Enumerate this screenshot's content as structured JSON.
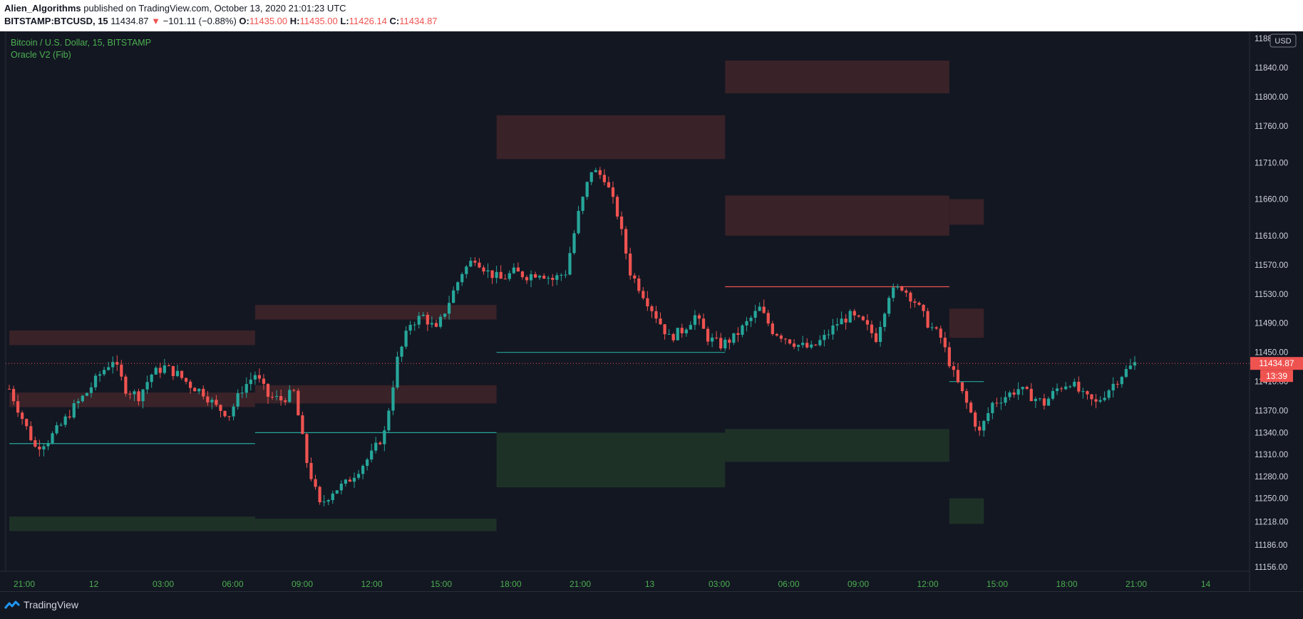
{
  "header": {
    "author": "Alien_Algorithms",
    "published": "published on TradingView.com, October 13, 2020 21:01:23 UTC",
    "symbol": "BITSTAMP:BTCUSD, 15",
    "last": "11434.87",
    "change": "−101.11 (−0.88%)",
    "o_label": "O:",
    "o_value": "11435.00",
    "h_label": "H:",
    "h_value": "11435.00",
    "l_label": "L:",
    "l_value": "11426.14",
    "c_label": "C:",
    "c_value": "11434.87"
  },
  "legend": {
    "series_title": "Bitcoin / U.S. Dollar, 15, BITSTAMP",
    "indicator": "Oracle V2 (Fib)"
  },
  "currency_badge": "USD",
  "last_price_tag": "11434.87",
  "countdown_tag": "13:39",
  "footer": {
    "brand": "TradingView"
  },
  "colors": {
    "background": "#131722",
    "up": "#26a69a",
    "down": "#ef5350",
    "resistance_zone": "#3b2329",
    "support_zone": "#1f3328",
    "axis_text": "#d1d4dc",
    "time_text": "#4caf50"
  },
  "chart_data": {
    "type": "candlestick",
    "title": "Bitcoin / U.S. Dollar, 15, BITSTAMP",
    "interval": "15",
    "exchange": "BITSTAMP",
    "x_ticks": [
      "21:00",
      "12",
      "03:00",
      "06:00",
      "09:00",
      "12:00",
      "15:00",
      "18:00",
      "21:00",
      "13",
      "03:00",
      "06:00",
      "09:00",
      "12:00",
      "15:00",
      "18:00",
      "21:00",
      "14"
    ],
    "y_ticks": [
      "11880.00",
      "11840.00",
      "11800.00",
      "11760.00",
      "11710.00",
      "11660.00",
      "11610.00",
      "11570.00",
      "11530.00",
      "11490.00",
      "11450.00",
      "11410.00",
      "11370.00",
      "11340.00",
      "11310.00",
      "11280.00",
      "11250.00",
      "11218.00",
      "11186.00",
      "11156.00"
    ],
    "ylim": [
      11150,
      11890
    ],
    "last_price": 11434.87,
    "candle_points": [
      [
        0,
        11400
      ],
      [
        3,
        11360
      ],
      [
        6,
        11320
      ],
      [
        9,
        11330
      ],
      [
        12,
        11350
      ],
      [
        15,
        11375
      ],
      [
        18,
        11395
      ],
      [
        21,
        11420
      ],
      [
        24,
        11440
      ],
      [
        27,
        11400
      ],
      [
        30,
        11390
      ],
      [
        33,
        11420
      ],
      [
        36,
        11430
      ],
      [
        39,
        11420
      ],
      [
        42,
        11405
      ],
      [
        45,
        11395
      ],
      [
        48,
        11375
      ],
      [
        51,
        11365
      ],
      [
        54,
        11400
      ],
      [
        57,
        11420
      ],
      [
        60,
        11390
      ],
      [
        63,
        11385
      ],
      [
        66,
        11395
      ],
      [
        69,
        11300
      ],
      [
        72,
        11240
      ],
      [
        75,
        11260
      ],
      [
        78,
        11270
      ],
      [
        81,
        11290
      ],
      [
        84,
        11310
      ],
      [
        87,
        11340
      ],
      [
        90,
        11440
      ],
      [
        93,
        11490
      ],
      [
        96,
        11500
      ],
      [
        99,
        11480
      ],
      [
        102,
        11520
      ],
      [
        105,
        11560
      ],
      [
        108,
        11580
      ],
      [
        111,
        11560
      ],
      [
        114,
        11550
      ],
      [
        117,
        11560
      ],
      [
        120,
        11555
      ],
      [
        123,
        11560
      ],
      [
        126,
        11550
      ],
      [
        129,
        11560
      ],
      [
        132,
        11640
      ],
      [
        135,
        11700
      ],
      [
        138,
        11690
      ],
      [
        141,
        11640
      ],
      [
        144,
        11560
      ],
      [
        147,
        11530
      ],
      [
        150,
        11500
      ],
      [
        153,
        11470
      ],
      [
        156,
        11480
      ],
      [
        159,
        11500
      ],
      [
        162,
        11470
      ],
      [
        165,
        11460
      ],
      [
        168,
        11470
      ],
      [
        171,
        11490
      ],
      [
        174,
        11510
      ],
      [
        177,
        11480
      ],
      [
        180,
        11470
      ],
      [
        183,
        11460
      ],
      [
        186,
        11455
      ],
      [
        189,
        11470
      ],
      [
        192,
        11490
      ],
      [
        195,
        11500
      ],
      [
        198,
        11490
      ],
      [
        201,
        11470
      ],
      [
        204,
        11530
      ],
      [
        207,
        11540
      ],
      [
        210,
        11520
      ],
      [
        213,
        11490
      ],
      [
        216,
        11470
      ],
      [
        219,
        11420
      ],
      [
        222,
        11380
      ],
      [
        225,
        11340
      ],
      [
        228,
        11380
      ],
      [
        231,
        11390
      ],
      [
        234,
        11400
      ],
      [
        237,
        11390
      ],
      [
        240,
        11380
      ],
      [
        243,
        11400
      ],
      [
        246,
        11410
      ],
      [
        249,
        11390
      ],
      [
        252,
        11380
      ],
      [
        255,
        11400
      ],
      [
        258,
        11420
      ],
      [
        261,
        11434.87
      ]
    ],
    "candle_count": 262,
    "fib_levels": {
      "segments": [
        {
          "from": 0,
          "to": 57,
          "resistance_zones": [
            [
              11460,
              11480
            ],
            [
              11375,
              11395
            ]
          ],
          "pivot": 11325,
          "support_zones": [
            [
              11205,
              11225
            ]
          ]
        },
        {
          "from": 57,
          "to": 113,
          "resistance_zones": [
            [
              11495,
              11515
            ],
            [
              11380,
              11405
            ]
          ],
          "pivot": 11340,
          "support_zones": [
            [
              11205,
              11222
            ]
          ]
        },
        {
          "from": 113,
          "to": 166,
          "resistance_zones": [
            [
              11715,
              11775
            ]
          ],
          "pivot": 11450,
          "support_zones": [
            [
              11265,
              11340
            ]
          ]
        },
        {
          "from": 166,
          "to": 218,
          "resistance_zones": [
            [
              11805,
              11850
            ],
            [
              11610,
              11665
            ]
          ],
          "pivot": 11540,
          "support_zones": [
            [
              11300,
              11345
            ]
          ]
        },
        {
          "from": 218,
          "to": 226,
          "resistance_zones": [
            [
              11625,
              11660
            ],
            [
              11470,
              11510
            ]
          ],
          "pivot": 11410,
          "support_zones": [
            [
              11215,
              11250
            ]
          ]
        }
      ]
    }
  }
}
